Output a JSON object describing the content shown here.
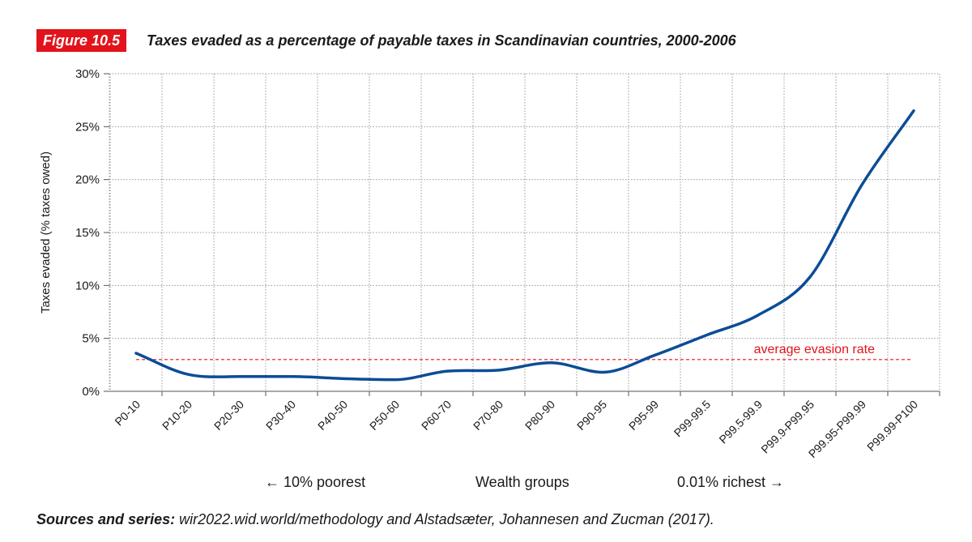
{
  "figure": {
    "badge": "Figure 10.5",
    "title": "Taxes evaded as a percentage of payable taxes in Scandinavian countries, 2000-2006",
    "badge_color": "#e3131b"
  },
  "chart_data": {
    "type": "line",
    "title": "Taxes evaded as a percentage of payable taxes in Scandinavian countries, 2000-2006",
    "xlabel": "Wealth groups",
    "ylabel": "Taxes evaded (% taxes owed)",
    "categories": [
      "P0-10",
      "P10-20",
      "P20-30",
      "P30-40",
      "P40-50",
      "P50-60",
      "P60-70",
      "P70-80",
      "P80-90",
      "P90-95",
      "P95-99",
      "P99-99.5",
      "P99.5-99.9",
      "P99.9-P99.95",
      "P99.95-P99.99",
      "P99.99-P100"
    ],
    "series": [
      {
        "values": [
          3.6,
          1.6,
          1.4,
          1.4,
          1.2,
          1.1,
          1.9,
          2.0,
          2.7,
          1.8,
          3.4,
          5.3,
          7.2,
          10.8,
          19.5,
          26.5
        ],
        "color": "#0b4d96"
      }
    ],
    "reference_line": {
      "value": 3.0,
      "label": "average evasion rate",
      "color": "#e3131b"
    },
    "ylim": [
      0,
      30
    ],
    "yticks": [
      0,
      5,
      10,
      15,
      20,
      25,
      30
    ],
    "ytick_labels": [
      "0%",
      "5%",
      "10%",
      "15%",
      "20%",
      "25%",
      "30%"
    ],
    "grid": true,
    "annotations": {
      "left": "← 10% poorest",
      "right": "0.01% richest →"
    }
  },
  "sources": {
    "label": "Sources and series:",
    "text": " wir2022.wid.world/methodology and Alstadsæter, Johannesen and Zucman (2017)."
  }
}
